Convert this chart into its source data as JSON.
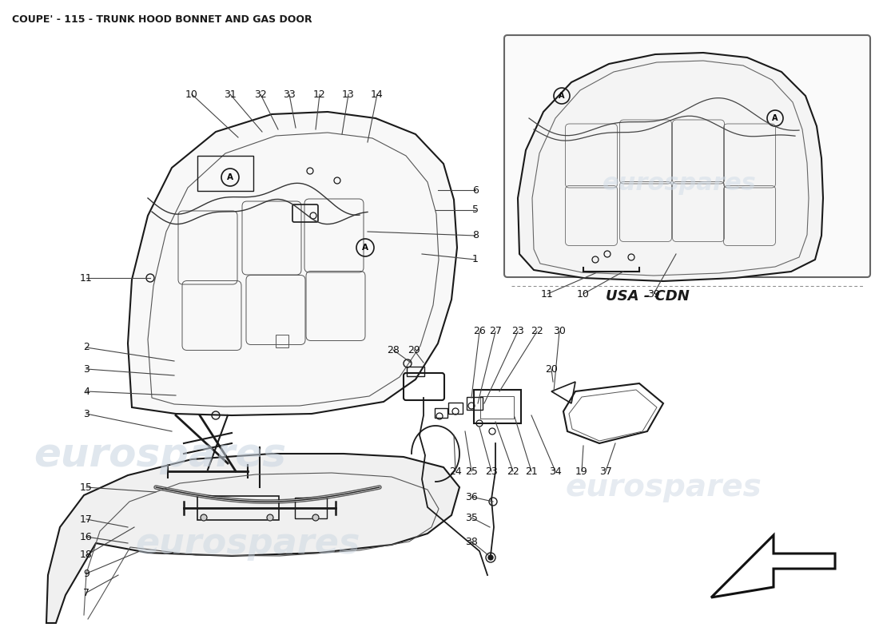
{
  "title": "COUPE' - 115 - TRUNK HOOD BONNET AND GAS DOOR",
  "title_fontsize": 9,
  "background_color": "#ffffff",
  "line_color": "#000000",
  "watermark_color": "#c8d4e0",
  "watermark_text": "eurospares",
  "usa_cdn_label": "USA - CDN"
}
